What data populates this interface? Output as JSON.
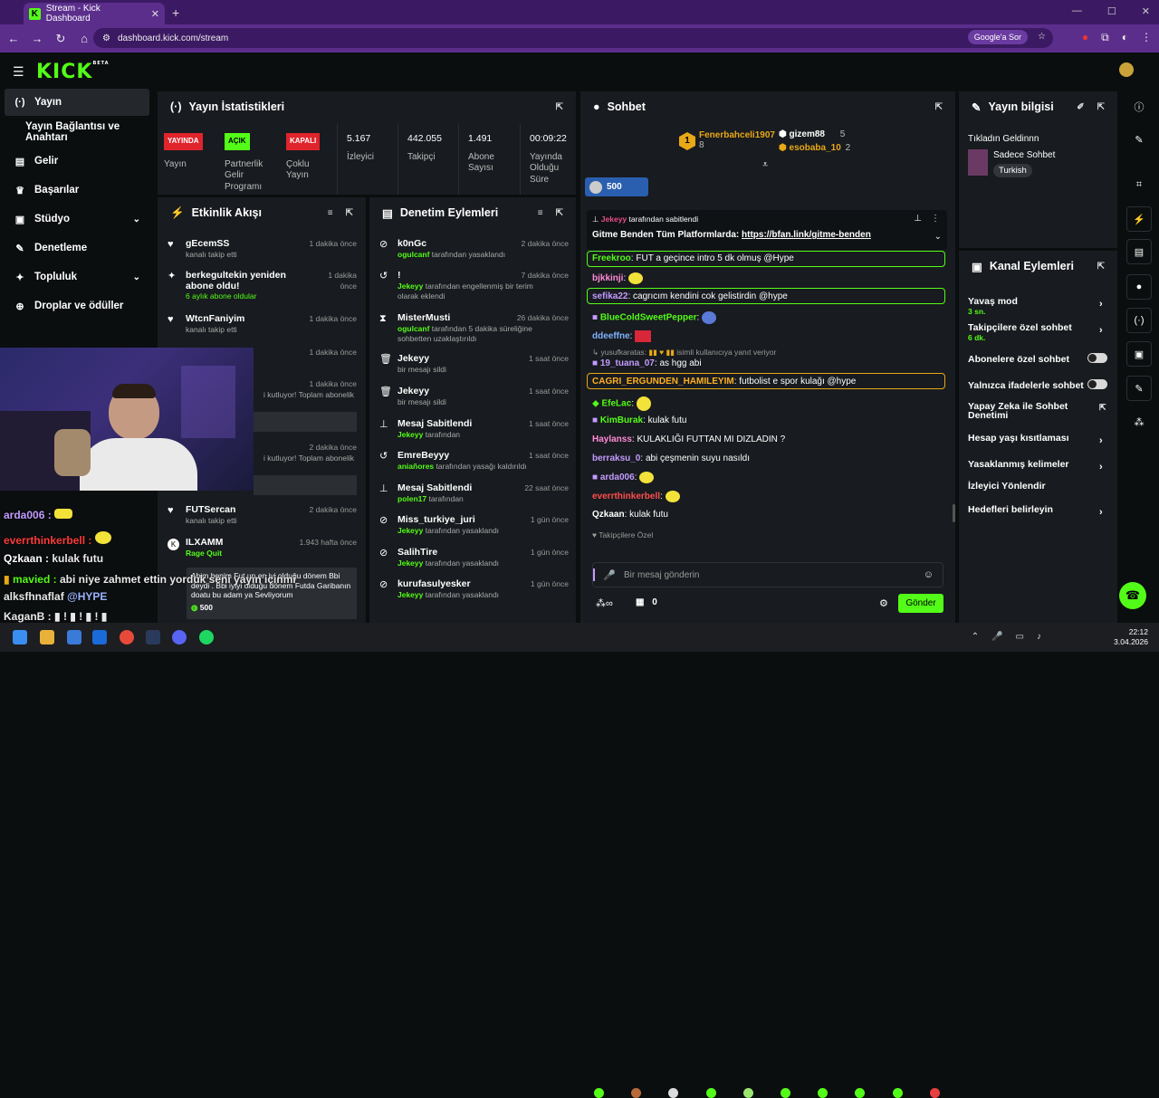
{
  "browser": {
    "tab_title": "Stream - Kick Dashboard",
    "url": "dashboard.kick.com/stream",
    "google_btn": "Google'a Sor"
  },
  "brand": {
    "logo": "KICK",
    "beta": "BETA",
    "accent": "#53fc18"
  },
  "sidebar": {
    "items": [
      {
        "label": "Yayın",
        "icon": "broadcast-icon"
      },
      {
        "label": "Yayın Bağlantısı ve Anahtarı"
      },
      {
        "label": "Gelir",
        "icon": "wallet-icon"
      },
      {
        "label": "Başarılar",
        "icon": "trophy-icon"
      },
      {
        "label": "Stüdyo",
        "icon": "studio-icon"
      },
      {
        "label": "Denetleme",
        "icon": "wrench-icon"
      },
      {
        "label": "Topluluk",
        "icon": "community-icon"
      },
      {
        "label": "Droplar ve ödüller",
        "icon": "gift-icon"
      }
    ]
  },
  "stats": {
    "title": "Yayın İstatistikleri",
    "items": [
      {
        "badge": "YAYINDA",
        "label": "Yayın"
      },
      {
        "badge": "AÇIK",
        "label": "Partnerlik Gelir Programı"
      },
      {
        "badge": "KAPALI",
        "label": "Çoklu Yayın"
      },
      {
        "value": "5.167",
        "label": "İzleyici"
      },
      {
        "value": "442.055",
        "label": "Takipçi"
      },
      {
        "value": "1.491",
        "label": "Abone Sayısı"
      },
      {
        "value": "00:09:22",
        "label": "Yayında Olduğu Süre"
      }
    ]
  },
  "activity": {
    "title": "Etkinlik Akışı",
    "items": [
      {
        "name": "gEcemSS",
        "sub": "kanalı takip etti",
        "time": "1 dakika önce"
      },
      {
        "name": "berkegultekin yeniden abone oldu!",
        "sub": "6 aylık abone oldular",
        "time": "1 dakika önce"
      },
      {
        "name": "WtcnFaniyim",
        "sub": "kanalı takip etti",
        "time": "1 dakika önce"
      },
      {
        "name": "",
        "sub": "",
        "time": "1 dakika önce"
      },
      {
        "name": "",
        "sub": "i kutluyor! Toplam abonelik",
        "time": "1 dakika önce"
      },
      {
        "name": "",
        "sub": "i kutluyor! Toplam abonelik",
        "time": "2 dakika önce"
      },
      {
        "name": "FUTSercan",
        "sub": "kanalı takip etti",
        "time": "2 dakika önce"
      },
      {
        "name": "ILXAMM",
        "sub": "Rage Quit",
        "time": "1.943 hafta önce",
        "quote": "Abim benim Fut un en iyi olduğu dönem Bbi deydi . Bbi iyiyi olduğu dönem Futda Garibanın doatu bu adam ya Sevliyorum",
        "amount": "500"
      }
    ]
  },
  "moderation": {
    "title": "Denetim Eylemleri",
    "items": [
      {
        "name": "k0nGc",
        "sub": "ogulcanf",
        "rest": "tarafından yasaklandı",
        "time": "2 dakika önce"
      },
      {
        "name": "!",
        "sub": "Jekeyy",
        "rest": "tarafından engellenmiş bir terim olarak eklendi",
        "time": "7 dakika önce"
      },
      {
        "name": "MisterMusti",
        "sub": "ogulcanf",
        "rest": "tarafından 5 dakika süreliğine sohbetten uzaklaştırıldı",
        "time": "26 dakika önce"
      },
      {
        "name": "Jekeyy",
        "sub": "",
        "rest": "bir mesajı sildi",
        "time": "1 saat önce"
      },
      {
        "name": "Jekeyy",
        "sub": "",
        "rest": "bir mesajı sildi",
        "time": "1 saat önce"
      },
      {
        "name": "Mesaj Sabitlendi",
        "sub": "Jekeyy",
        "rest": "tarafından",
        "time": "1 saat önce"
      },
      {
        "name": "EmreBeyyy",
        "sub": "aniañores",
        "rest": "tarafından yasağı kaldırıldı",
        "time": "1 saat önce"
      },
      {
        "name": "Mesaj Sabitlendi",
        "sub": "polen17",
        "rest": "tarafından",
        "time": "22 saat önce"
      },
      {
        "name": "Miss_turkiye_juri",
        "sub": "Jekeyy",
        "rest": "tarafından yasaklandı",
        "time": "1 gün önce"
      },
      {
        "name": "SalihTire",
        "sub": "Jekeyy",
        "rest": "tarafından yasaklandı",
        "time": "1 gün önce"
      },
      {
        "name": "kurufasulyesker",
        "sub": "Jekeyy",
        "rest": "tarafından yasaklandı",
        "time": "1 gün önce"
      }
    ]
  },
  "chat": {
    "title": "Sohbet",
    "leaders": [
      {
        "name": "Fenerbahceli1907",
        "count": "8"
      },
      {
        "name": "gizem88",
        "count": "5"
      },
      {
        "name": "esobaba_10",
        "count": "2"
      }
    ],
    "goal": "500",
    "pinned": {
      "by": "Jekeyy",
      "by_text": "tarafından sabitlendi",
      "text": "Gitme Benden Tüm Platformlarda:",
      "link": "https://bfan.link/gitme-benden"
    },
    "messages": [
      {
        "user": "Freekroo",
        "color": "#53fc18",
        "text": "FUT a geçince intro 5 dk olmuş @Hype"
      },
      {
        "user": "bjkkinji",
        "color": "#ff8ad8",
        "text": ""
      },
      {
        "user": "sefika22",
        "color": "#c39bff",
        "text": "cagrıcım kendini cok gelistirdin @hype"
      },
      {
        "user": "BlueColdSweetPepper",
        "color": "#53fc18",
        "text": ""
      },
      {
        "user": "ddeeffne",
        "color": "#7fb2ff",
        "text": ""
      },
      {
        "user": "yusufkaratas",
        "color": "#9a9a9a",
        "text": "isimli kullanıcıya yanıt veriyor"
      },
      {
        "user": "19_tuana_07",
        "color": "#c39bff",
        "text": "as hgg abi"
      },
      {
        "user": "CAGRI_ERGUNDEN_HAMILEYIM",
        "color": "#ffb020",
        "text": "futbolist e spor kulağı @hype"
      },
      {
        "user": "EfeLac",
        "color": "#53fc18",
        "text": ""
      },
      {
        "user": "KimBurak",
        "color": "#53fc18",
        "text": "kulak futu"
      },
      {
        "user": "Haylanss",
        "color": "#ff8ad8",
        "text": "KULAKLIĞI FUTTAN MI DIZLADIN ?"
      },
      {
        "user": "berraksu_0",
        "color": "#c39bff",
        "text": "abi çeşmenin suyu nasıldı"
      },
      {
        "user": "arda006",
        "color": "#c39bff",
        "text": ""
      },
      {
        "user": "everrthinkerbell",
        "color": "#ff4d4d",
        "text": ""
      },
      {
        "user": "Qzkaan",
        "color": "#ffffff",
        "text": "kulak futu"
      }
    ],
    "followers_only": "Takipçilere Özel",
    "input_placeholder": "Bir mesaj gönderin",
    "points": "0",
    "send": "Gönder"
  },
  "info": {
    "title": "Yayın bilgisi",
    "stream_title": "Tıkladın Geldinnn",
    "category": "Sadece Sohbet",
    "tag": "Turkish"
  },
  "channel": {
    "title": "Kanal Eylemleri",
    "items": [
      {
        "label": "Yavaş mod",
        "sub": "3 sn."
      },
      {
        "label": "Takipçilere özel sohbet",
        "sub": "6 dk."
      },
      {
        "label": "Abonelere özel sohbet"
      },
      {
        "label": "Yalnızca ifadelerle sohbet"
      },
      {
        "label": "Yapay Zeka ile Sohbet Denetimi"
      },
      {
        "label": "Hesap yaşı kısıtlaması"
      },
      {
        "label": "Yasaklanmış kelimeler"
      },
      {
        "label": "İzleyici Yönlendir"
      },
      {
        "label": "Hedefleri belirleyin"
      }
    ]
  },
  "overlay": {
    "lines": [
      {
        "user": "arda006 :",
        "color": "#c39bff"
      },
      {
        "user": "everrthinkerbell :",
        "color": "#ff3b3b"
      },
      {
        "user": "Qzkaan :",
        "color": "#ffffff",
        "text": "kulak futu"
      },
      {
        "user": "mavied :",
        "color": "#53fc18",
        "text": "abi niye zahmet ettin yorduk seni yayın içinmi"
      },
      {
        "user": "alksfhnaflaf",
        "color": "#ffffff",
        "text": "@HYPE"
      },
      {
        "user": "KaganB :",
        "color": "#ffffff"
      }
    ]
  },
  "taskbar": {
    "time": "22:12",
    "date": "3.04.2026"
  }
}
